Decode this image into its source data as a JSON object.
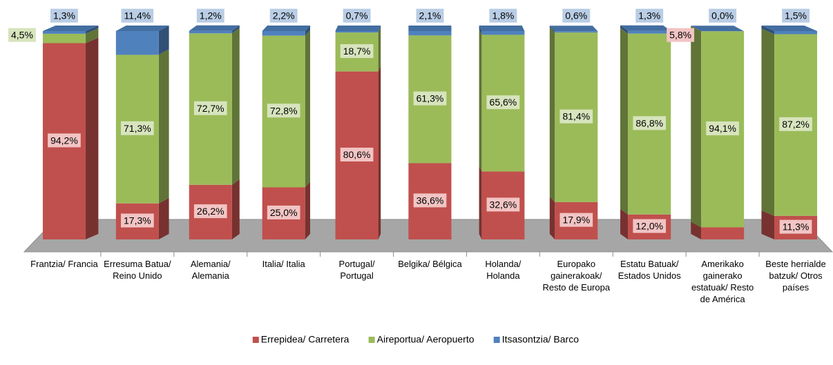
{
  "chart_data": {
    "type": "bar",
    "stacked": true,
    "categories": [
      "Frantzia/ Francia",
      "Erresuma Batua/ Reino Unido",
      "Alemania/ Alemania",
      "Italia/ Italia",
      "Portugal/ Portugal",
      "Belgika/ Bélgica",
      "Holanda/ Holanda",
      "Europako gainerakoak/ Resto de Europa",
      "Estatu Batuak/ Estados Unidos",
      "Amerikako gainerako estatuak/ Resto de América",
      "Beste herrialde batzuk/ Otros países"
    ],
    "ylim": [
      0,
      100
    ],
    "legend": "bottom",
    "series": [
      {
        "name": "Errepidea/ Carretera",
        "color": "#c0504d",
        "label_color": "#f2c4c4",
        "values": [
          94.2,
          17.3,
          26.2,
          25.0,
          80.6,
          36.6,
          32.6,
          17.9,
          12.0,
          5.8,
          11.3
        ],
        "value_labels": [
          "94,2%",
          "17,3%",
          "26,2%",
          "25,0%",
          "80,6%",
          "36,6%",
          "32,6%",
          "17,9%",
          "12,0%",
          "5,8%",
          "11,3%"
        ]
      },
      {
        "name": "Aireportua/ Aeropuerto",
        "color": "#9bbb59",
        "label_color": "#d7e4bd",
        "values": [
          4.5,
          71.3,
          72.7,
          72.8,
          18.7,
          61.3,
          65.6,
          81.4,
          86.8,
          94.1,
          87.2
        ],
        "value_labels": [
          "4,5%",
          "71,3%",
          "72,7%",
          "72,8%",
          "18,7%",
          "61,3%",
          "65,6%",
          "81,4%",
          "86,8%",
          "94,1%",
          "87,2%"
        ]
      },
      {
        "name": "Itsasontzia/ Barco",
        "color": "#4f81bd",
        "label_color": "#b9cde5",
        "values": [
          1.3,
          11.4,
          1.2,
          2.2,
          0.7,
          2.1,
          1.8,
          0.6,
          1.3,
          0.0,
          1.5
        ],
        "value_labels": [
          "1,3%",
          "11,4%",
          "1,2%",
          "2,2%",
          "0,7%",
          "2,1%",
          "1,8%",
          "0,6%",
          "1,3%",
          "0,0%",
          "1,5%"
        ]
      }
    ]
  }
}
